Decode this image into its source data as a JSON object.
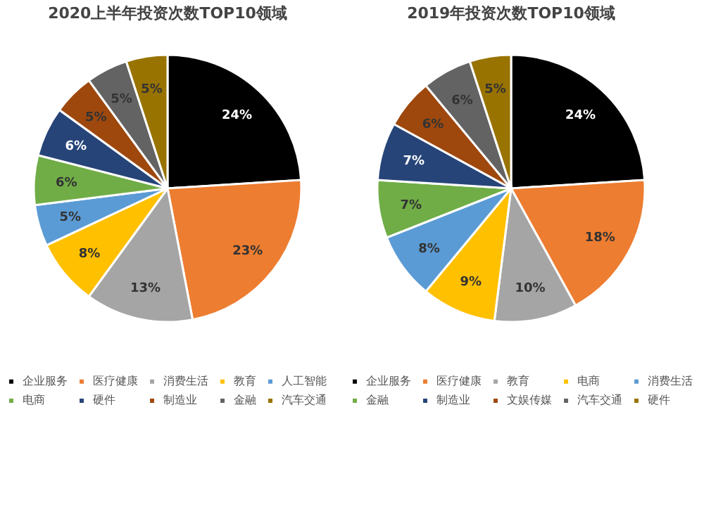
{
  "chart_data": [
    {
      "type": "pie",
      "title": "2020上半年投资次数TOP10领域",
      "categories": [
        "企业服务",
        "医疗健康",
        "消费生活",
        "教育",
        "人工智能",
        "电商",
        "硬件",
        "制造业",
        "金融",
        "汽车交通"
      ],
      "values": [
        24,
        23,
        13,
        8,
        5,
        6,
        6,
        5,
        5,
        5
      ],
      "value_labels": [
        "24%",
        "23%",
        "13%",
        "8%",
        "5%",
        "6%",
        "6%",
        "5%",
        "5%",
        "5%"
      ],
      "colors": [
        "#000000",
        "#ed7d31",
        "#a5a5a5",
        "#ffc000",
        "#5b9bd5",
        "#70ad47",
        "#264478",
        "#9e480e",
        "#636363",
        "#997300"
      ],
      "legend": "bottom"
    },
    {
      "type": "pie",
      "title": "2019年投资次数TOP10领域",
      "categories": [
        "企业服务",
        "医疗健康",
        "教育",
        "电商",
        "消费生活",
        "金融",
        "制造业",
        "文娱传媒",
        "汽车交通",
        "硬件"
      ],
      "values": [
        24,
        18,
        10,
        9,
        8,
        7,
        7,
        6,
        6,
        5
      ],
      "value_labels": [
        "24%",
        "18%",
        "10%",
        "9%",
        "8%",
        "7%",
        "7%",
        "6%",
        "6%",
        "5%"
      ],
      "colors": [
        "#000000",
        "#ed7d31",
        "#a5a5a5",
        "#ffc000",
        "#5b9bd5",
        "#70ad47",
        "#264478",
        "#9e480e",
        "#636363",
        "#997300"
      ],
      "legend": "bottom"
    }
  ]
}
